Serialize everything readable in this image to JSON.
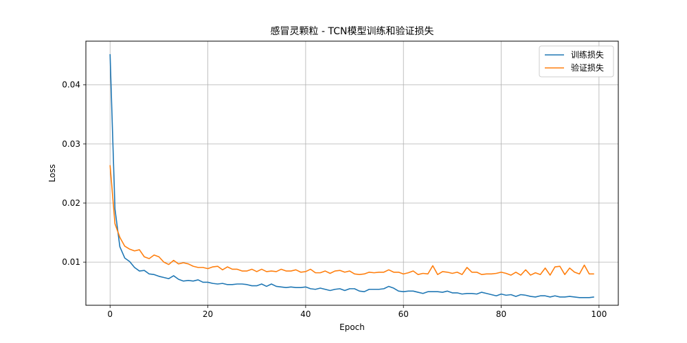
{
  "chart_data": {
    "type": "line",
    "title": "感冒灵颗粒 - TCN模型训练和验证损失",
    "xlabel": "Epoch",
    "ylabel": "Loss",
    "xlim": [
      -4.95,
      103.95
    ],
    "ylim": [
      0.0027,
      0.0474
    ],
    "xticks": [
      0,
      20,
      40,
      60,
      80,
      100
    ],
    "yticks": [
      0.01,
      0.02,
      0.03,
      0.04
    ],
    "ytick_labels": [
      "0.01",
      "0.02",
      "0.03",
      "0.04"
    ],
    "grid": true,
    "legend_position": "top-right",
    "series": [
      {
        "name": "训练损失",
        "color": "#1f77b4",
        "values": [
          0.0452,
          0.019,
          0.0126,
          0.0107,
          0.0101,
          0.0091,
          0.0085,
          0.0086,
          0.008,
          0.0079,
          0.0076,
          0.0074,
          0.0072,
          0.0077,
          0.0071,
          0.0068,
          0.0069,
          0.0068,
          0.007,
          0.0066,
          0.0066,
          0.0064,
          0.0063,
          0.0064,
          0.0062,
          0.0062,
          0.0063,
          0.0063,
          0.0062,
          0.006,
          0.006,
          0.0063,
          0.0059,
          0.0063,
          0.0059,
          0.0058,
          0.0057,
          0.0058,
          0.0057,
          0.0057,
          0.0058,
          0.0055,
          0.0054,
          0.0056,
          0.0054,
          0.0052,
          0.0054,
          0.0055,
          0.0052,
          0.0055,
          0.0055,
          0.0051,
          0.005,
          0.0054,
          0.0054,
          0.0054,
          0.0055,
          0.0059,
          0.0056,
          0.0051,
          0.005,
          0.0051,
          0.0051,
          0.0049,
          0.0047,
          0.005,
          0.005,
          0.005,
          0.0049,
          0.0051,
          0.0048,
          0.0048,
          0.0046,
          0.0047,
          0.0047,
          0.0046,
          0.0049,
          0.0047,
          0.0045,
          0.0043,
          0.0046,
          0.0044,
          0.0045,
          0.0042,
          0.0045,
          0.0044,
          0.0042,
          0.0041,
          0.0043,
          0.0043,
          0.0041,
          0.0043,
          0.0041,
          0.0041,
          0.0042,
          0.0041,
          0.004,
          0.004,
          0.004,
          0.0041
        ]
      },
      {
        "name": "验证损失",
        "color": "#ff7f0e",
        "values": [
          0.0264,
          0.0165,
          0.0142,
          0.0127,
          0.0122,
          0.0119,
          0.0121,
          0.0109,
          0.0106,
          0.0112,
          0.0109,
          0.01,
          0.0096,
          0.0103,
          0.0097,
          0.0099,
          0.0097,
          0.0093,
          0.0091,
          0.0091,
          0.0089,
          0.0092,
          0.0093,
          0.0087,
          0.0092,
          0.0088,
          0.0088,
          0.0085,
          0.0085,
          0.0088,
          0.0084,
          0.0088,
          0.0084,
          0.0085,
          0.0084,
          0.0088,
          0.0085,
          0.0085,
          0.0087,
          0.0083,
          0.0084,
          0.0088,
          0.0082,
          0.0082,
          0.0085,
          0.0081,
          0.0085,
          0.0086,
          0.0083,
          0.0085,
          0.008,
          0.0079,
          0.008,
          0.0083,
          0.0082,
          0.0083,
          0.0083,
          0.0087,
          0.0083,
          0.0083,
          0.008,
          0.0082,
          0.0085,
          0.0079,
          0.0081,
          0.008,
          0.0094,
          0.0079,
          0.0084,
          0.0083,
          0.0081,
          0.0083,
          0.0079,
          0.0091,
          0.0083,
          0.0083,
          0.0079,
          0.008,
          0.008,
          0.0081,
          0.0083,
          0.0081,
          0.0078,
          0.0083,
          0.0078,
          0.0087,
          0.0078,
          0.0082,
          0.0079,
          0.009,
          0.0078,
          0.0092,
          0.0093,
          0.0079,
          0.009,
          0.0083,
          0.008,
          0.0095,
          0.008,
          0.008
        ]
      }
    ]
  }
}
